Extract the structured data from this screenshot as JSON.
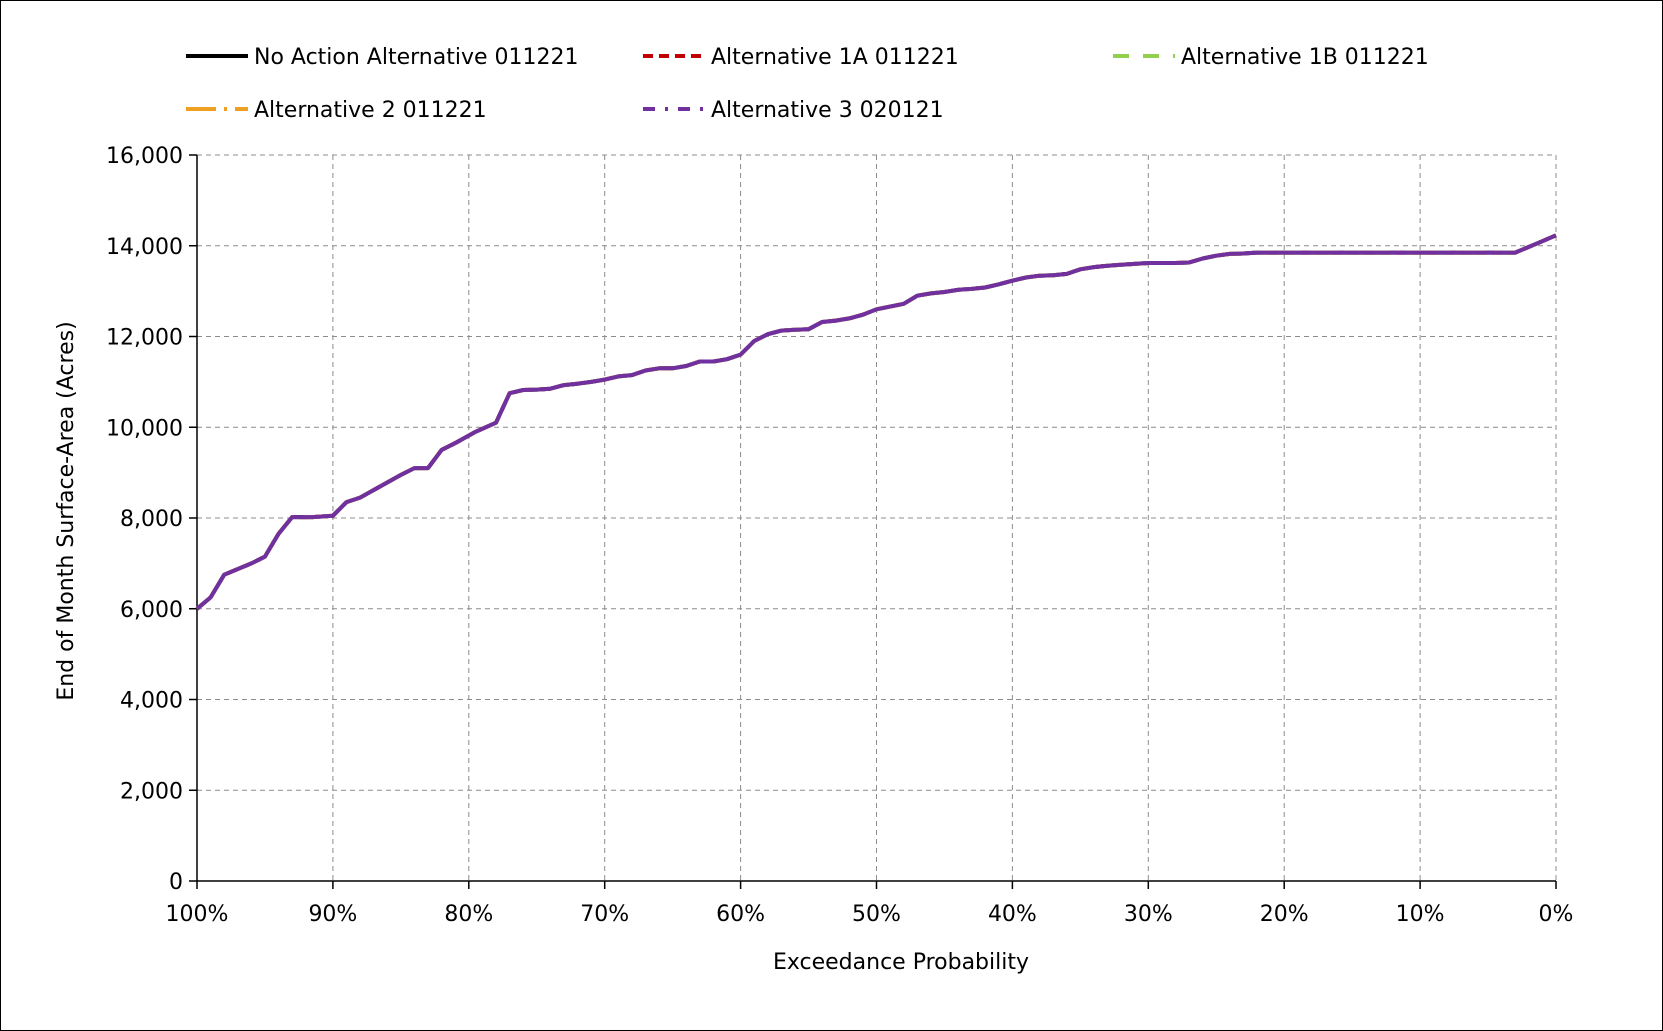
{
  "chart_data": {
    "type": "line",
    "title": "",
    "xlabel": "Exceedance Probability",
    "ylabel": "End of Month Surface-Area (Acres)",
    "xlim": [
      100,
      0
    ],
    "ylim": [
      0,
      16000
    ],
    "x_ticks": [
      "100%",
      "90%",
      "80%",
      "70%",
      "60%",
      "50%",
      "40%",
      "30%",
      "20%",
      "10%",
      "0%"
    ],
    "y_ticks": [
      "0",
      "2,000",
      "4,000",
      "6,000",
      "8,000",
      "10,000",
      "12,000",
      "14,000",
      "16,000"
    ],
    "grid": true,
    "legend_position": "top",
    "x": [
      100,
      99,
      98,
      96,
      95,
      94,
      93,
      91.5,
      90,
      89,
      88,
      86.5,
      85,
      84,
      83,
      82,
      81,
      79.5,
      78,
      77,
      76,
      75,
      74,
      73,
      72,
      71,
      70,
      69,
      68,
      67,
      66,
      65,
      64,
      63,
      62,
      61,
      60,
      59,
      58,
      57,
      56,
      55,
      54,
      53,
      52,
      51,
      50,
      49,
      48,
      47,
      46,
      45,
      44,
      43,
      42,
      41,
      40,
      39,
      38,
      37,
      36,
      35,
      34,
      33,
      32,
      31,
      30,
      29,
      28,
      27,
      26,
      25,
      24,
      23,
      22,
      21,
      20,
      15,
      10,
      5,
      3,
      1,
      0
    ],
    "series": [
      {
        "name": "No Action Alternative 011221",
        "color": "#000000",
        "dash": "solid",
        "values": [
          6000,
          6250,
          6750,
          7000,
          7150,
          7650,
          8020,
          8020,
          8050,
          8350,
          8450,
          8700,
          8950,
          9100,
          9100,
          9500,
          9650,
          9900,
          10100,
          10750,
          10820,
          10830,
          10850,
          10930,
          10960,
          11000,
          11050,
          11120,
          11150,
          11250,
          11300,
          11300,
          11350,
          11450,
          11450,
          11500,
          11600,
          11900,
          12050,
          12130,
          12150,
          12160,
          12320,
          12350,
          12400,
          12480,
          12600,
          12660,
          12720,
          12900,
          12950,
          12980,
          13030,
          13050,
          13080,
          13150,
          13230,
          13300,
          13340,
          13350,
          13380,
          13480,
          13530,
          13560,
          13580,
          13600,
          13620,
          13620,
          13620,
          13630,
          13720,
          13780,
          13820,
          13830,
          13850,
          13850,
          13850,
          13850,
          13850,
          13850,
          13850,
          14100,
          14230
        ]
      },
      {
        "name": "Alternative 1A 011221",
        "color": "#c00000",
        "dash": "10,6",
        "values": [
          6000,
          6250,
          6750,
          7000,
          7150,
          7650,
          8020,
          8020,
          8050,
          8350,
          8450,
          8700,
          8950,
          9100,
          9100,
          9500,
          9650,
          9900,
          10100,
          10750,
          10820,
          10830,
          10850,
          10930,
          10960,
          11000,
          11050,
          11120,
          11150,
          11250,
          11300,
          11300,
          11350,
          11450,
          11450,
          11500,
          11600,
          11900,
          12050,
          12130,
          12150,
          12160,
          12320,
          12350,
          12400,
          12480,
          12600,
          12660,
          12720,
          12900,
          12950,
          12980,
          13030,
          13050,
          13080,
          13150,
          13230,
          13300,
          13340,
          13350,
          13380,
          13480,
          13530,
          13560,
          13580,
          13600,
          13620,
          13620,
          13620,
          13630,
          13720,
          13780,
          13820,
          13830,
          13850,
          13850,
          13850,
          13850,
          13850,
          13850,
          13850,
          14100,
          14230
        ]
      },
      {
        "name": "Alternative 1B 011221",
        "color": "#92d050",
        "dash": "16,14",
        "values": [
          6000,
          6250,
          6750,
          7000,
          7150,
          7650,
          8020,
          8020,
          8050,
          8350,
          8450,
          8700,
          8950,
          9100,
          9100,
          9500,
          9650,
          9900,
          10100,
          10750,
          10820,
          10830,
          10850,
          10930,
          10960,
          11000,
          11050,
          11120,
          11150,
          11250,
          11300,
          11300,
          11350,
          11450,
          11450,
          11500,
          11600,
          11900,
          12050,
          12130,
          12150,
          12160,
          12320,
          12350,
          12400,
          12480,
          12600,
          12660,
          12720,
          12900,
          12950,
          12980,
          13030,
          13050,
          13080,
          13150,
          13230,
          13300,
          13340,
          13350,
          13380,
          13480,
          13530,
          13560,
          13580,
          13600,
          13620,
          13620,
          13620,
          13630,
          13720,
          13780,
          13820,
          13830,
          13850,
          13850,
          13850,
          13850,
          13850,
          13850,
          13850,
          14100,
          14230
        ]
      },
      {
        "name": "Alternative 2 011221",
        "color": "#f0a020",
        "dash": "30,8,3,8",
        "values": [
          6000,
          6250,
          6750,
          7000,
          7150,
          7650,
          8020,
          8020,
          8050,
          8350,
          8450,
          8700,
          8950,
          9100,
          9100,
          9500,
          9650,
          9900,
          10100,
          10750,
          10820,
          10830,
          10850,
          10930,
          10960,
          11000,
          11050,
          11120,
          11150,
          11250,
          11300,
          11300,
          11350,
          11450,
          11450,
          11500,
          11600,
          11900,
          12050,
          12130,
          12150,
          12160,
          12320,
          12350,
          12400,
          12480,
          12600,
          12660,
          12720,
          12900,
          12950,
          12980,
          13030,
          13050,
          13080,
          13150,
          13230,
          13300,
          13340,
          13350,
          13380,
          13480,
          13530,
          13560,
          13580,
          13600,
          13620,
          13620,
          13620,
          13630,
          13720,
          13780,
          13820,
          13830,
          13850,
          13850,
          13850,
          13850,
          13850,
          13850,
          13850,
          14100,
          14230
        ]
      },
      {
        "name": "Alternative 3 020121",
        "color": "#7030a0",
        "dash": "solid",
        "values": [
          6000,
          6250,
          6750,
          7000,
          7150,
          7650,
          8020,
          8020,
          8050,
          8350,
          8450,
          8700,
          8950,
          9100,
          9100,
          9500,
          9650,
          9900,
          10100,
          10750,
          10820,
          10830,
          10850,
          10930,
          10960,
          11000,
          11050,
          11120,
          11150,
          11250,
          11300,
          11300,
          11350,
          11450,
          11450,
          11500,
          11600,
          11900,
          12050,
          12130,
          12150,
          12160,
          12320,
          12350,
          12400,
          12480,
          12600,
          12660,
          12720,
          12900,
          12950,
          12980,
          13030,
          13050,
          13080,
          13150,
          13230,
          13300,
          13340,
          13350,
          13380,
          13480,
          13530,
          13560,
          13580,
          13600,
          13620,
          13620,
          13620,
          13630,
          13720,
          13780,
          13820,
          13830,
          13850,
          13850,
          13850,
          13850,
          13850,
          13850,
          13850,
          14100,
          14230
        ]
      }
    ]
  }
}
